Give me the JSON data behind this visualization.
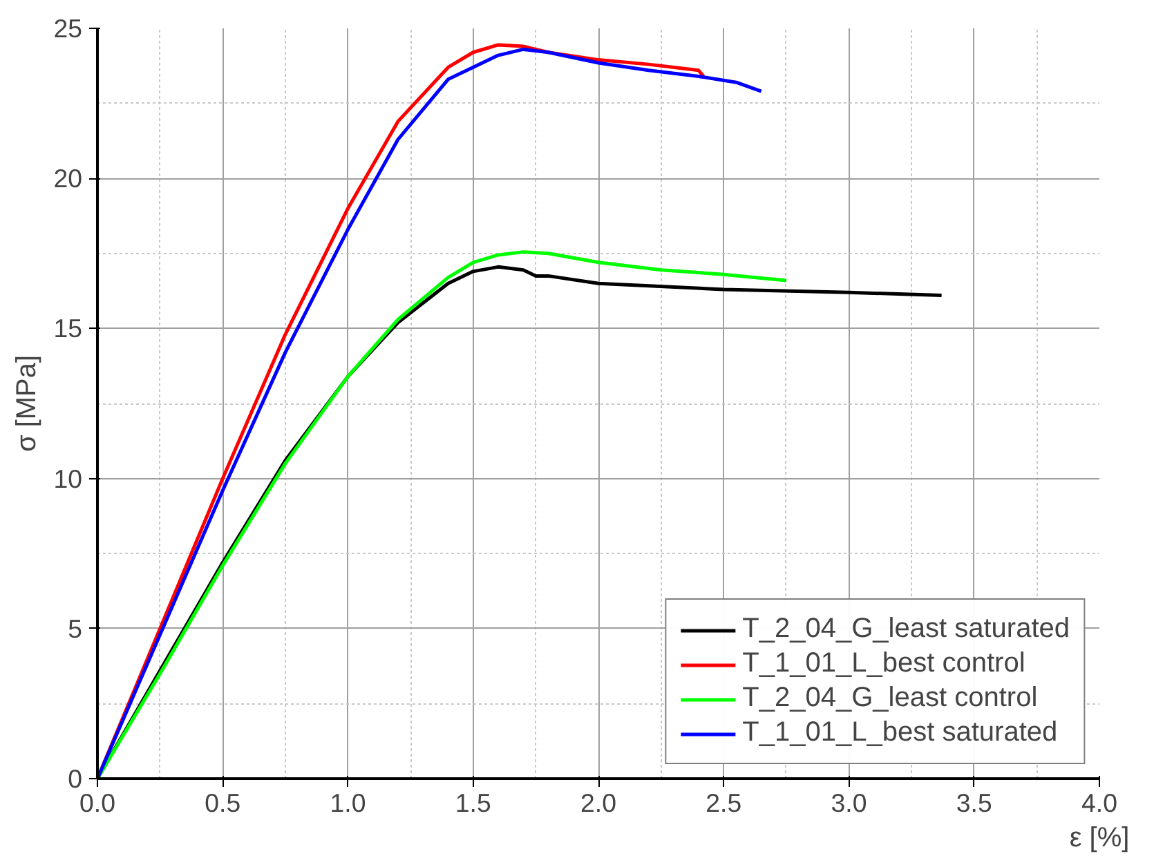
{
  "chart_data": {
    "type": "line",
    "xlabel": "ε [%]",
    "ylabel": "σ [MPa]",
    "xlim": [
      0,
      4
    ],
    "ylim": [
      0,
      25
    ],
    "xticks": [
      {
        "value": 0,
        "label": "0.0"
      },
      {
        "value": 0.5,
        "label": "0.5"
      },
      {
        "value": 1,
        "label": "1.0"
      },
      {
        "value": 1.5,
        "label": "1.5"
      },
      {
        "value": 2,
        "label": "2.0"
      },
      {
        "value": 2.5,
        "label": "2.5"
      },
      {
        "value": 3,
        "label": "3.0"
      },
      {
        "value": 3.5,
        "label": "3.5"
      },
      {
        "value": 4,
        "label": "4.0"
      }
    ],
    "yticks": [
      0,
      5,
      10,
      15,
      20,
      25
    ],
    "grid": true,
    "legend": "bottom right",
    "marker": "none",
    "line_style": "solid",
    "series": [
      {
        "name": "T_2_04_G_least saturated",
        "color": "#000000",
        "x": [
          0,
          0.25,
          0.5,
          0.75,
          1.0,
          1.2,
          1.4,
          1.5,
          1.6,
          1.7,
          1.75,
          1.8,
          2.0,
          2.5,
          3.0,
          3.37
        ],
        "values": [
          0,
          3.6,
          7.2,
          10.6,
          13.4,
          15.2,
          16.5,
          16.9,
          17.05,
          16.95,
          16.75,
          16.75,
          16.5,
          16.3,
          16.2,
          16.1
        ]
      },
      {
        "name": "T_1_01_L_best control",
        "color": "#ff0000",
        "x": [
          0,
          0.25,
          0.5,
          0.75,
          1.0,
          1.2,
          1.4,
          1.5,
          1.6,
          1.7,
          1.8,
          2.0,
          2.2,
          2.4,
          2.42
        ],
        "values": [
          0,
          5,
          10,
          14.8,
          19,
          21.9,
          23.7,
          24.2,
          24.45,
          24.4,
          24.2,
          23.95,
          23.8,
          23.6,
          23.4
        ]
      },
      {
        "name": "T_2_04_G_least control",
        "color": "#00ff00",
        "x": [
          0,
          0.25,
          0.5,
          0.75,
          1.0,
          1.2,
          1.4,
          1.5,
          1.6,
          1.7,
          1.8,
          2.0,
          2.25,
          2.5,
          2.75
        ],
        "values": [
          0,
          3.5,
          7.1,
          10.5,
          13.4,
          15.3,
          16.7,
          17.2,
          17.45,
          17.55,
          17.5,
          17.2,
          16.95,
          16.8,
          16.6
        ]
      },
      {
        "name": "T_1_01_L_best saturated",
        "color": "#0000ff",
        "x": [
          0,
          0.25,
          0.5,
          0.75,
          1.0,
          1.2,
          1.4,
          1.6,
          1.7,
          1.8,
          2.0,
          2.2,
          2.4,
          2.55,
          2.65
        ],
        "values": [
          0,
          4.8,
          9.6,
          14.2,
          18.3,
          21.3,
          23.3,
          24.1,
          24.3,
          24.2,
          23.85,
          23.6,
          23.4,
          23.2,
          22.9
        ]
      }
    ]
  }
}
